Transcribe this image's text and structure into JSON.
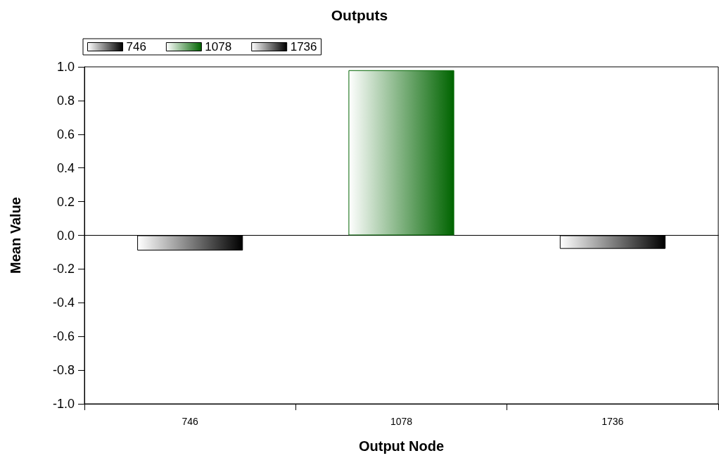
{
  "chart_data": {
    "type": "bar",
    "title": "Outputs",
    "xlabel": "Output Node",
    "ylabel": "Mean Value",
    "categories": [
      "746",
      "1078",
      "1736"
    ],
    "series": [
      {
        "name": "746",
        "color": "#000000",
        "values": [
          -0.09,
          null,
          null
        ]
      },
      {
        "name": "1078",
        "color": "#006400",
        "values": [
          null,
          0.98,
          null
        ]
      },
      {
        "name": "1736",
        "color": "#000000",
        "values": [
          null,
          null,
          -0.08
        ]
      }
    ],
    "ylim": [
      -1,
      1
    ],
    "yticks": [
      {
        "value": -1,
        "label": "-1.0"
      },
      {
        "value": -0.8,
        "label": "-0.8"
      },
      {
        "value": -0.6,
        "label": "-0.6"
      },
      {
        "value": -0.4,
        "label": "-0.4"
      },
      {
        "value": -0.2,
        "label": "-0.2"
      },
      {
        "value": 0,
        "label": "0.0"
      },
      {
        "value": 0.2,
        "label": "0.2"
      },
      {
        "value": 0.4,
        "label": "0.4"
      },
      {
        "value": 0.6,
        "label": "0.6"
      },
      {
        "value": 0.8,
        "label": "0.8"
      },
      {
        "value": 1,
        "label": "1.0"
      }
    ],
    "legend": "top left"
  }
}
